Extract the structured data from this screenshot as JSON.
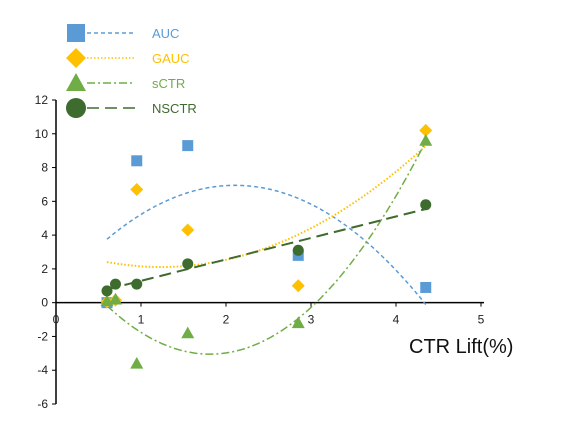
{
  "chart_data": {
    "type": "scatter",
    "xlabel": "CTR Lift(%)",
    "ylabel": "",
    "xlim": [
      0,
      5
    ],
    "ylim": [
      -6,
      12
    ],
    "x_ticks": [
      "0",
      "1",
      "2",
      "3",
      "4",
      "5"
    ],
    "y_ticks": [
      "-6",
      "-4",
      "-2",
      "0",
      "2",
      "4",
      "6",
      "8",
      "10",
      "12"
    ],
    "grid": false,
    "legend_position": "top-left",
    "series": [
      {
        "name": "AUC",
        "color": "#5b9bd5",
        "marker": "square",
        "trendline": "polynomial-2",
        "trend_style": "dashed",
        "points": [
          [
            0.6,
            0.0
          ],
          [
            0.95,
            8.4
          ],
          [
            1.55,
            9.3
          ],
          [
            2.85,
            2.8
          ],
          [
            4.35,
            0.9
          ]
        ]
      },
      {
        "name": "GAUC",
        "color": "#ffc000",
        "marker": "diamond",
        "trendline": "polynomial-2",
        "trend_style": "dotted",
        "points": [
          [
            0.6,
            0.05
          ],
          [
            0.7,
            0.15
          ],
          [
            0.95,
            6.7
          ],
          [
            1.55,
            4.3
          ],
          [
            2.85,
            1.0
          ],
          [
            4.35,
            10.2
          ]
        ]
      },
      {
        "name": "sCTR",
        "color": "#70ad47",
        "marker": "triangle",
        "trendline": "polynomial-2",
        "trend_style": "dash-dot",
        "points": [
          [
            0.6,
            0.1
          ],
          [
            0.7,
            0.2
          ],
          [
            0.95,
            -3.6
          ],
          [
            1.55,
            -1.8
          ],
          [
            2.85,
            -1.2
          ],
          [
            4.35,
            9.6
          ]
        ]
      },
      {
        "name": "NSCTR",
        "color": "#3e6b2e",
        "marker": "circle",
        "trendline": "linear",
        "trend_style": "long-dash",
        "points": [
          [
            0.6,
            0.7
          ],
          [
            0.7,
            1.1
          ],
          [
            0.95,
            1.1
          ],
          [
            1.55,
            2.3
          ],
          [
            2.85,
            3.1
          ],
          [
            4.35,
            5.8
          ]
        ]
      }
    ]
  }
}
